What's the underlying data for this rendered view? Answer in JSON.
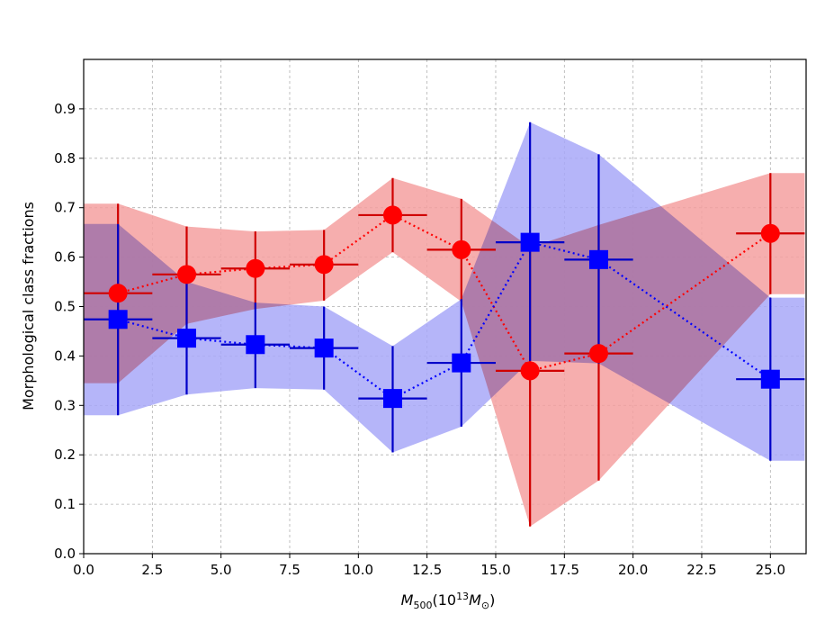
{
  "chart_data": {
    "type": "scatter",
    "title": "",
    "xlabel": "M",
    "xlabel_sub": "500",
    "xlabel_paren_open": "(10",
    "xlabel_sup": "13",
    "xlabel_m": "M",
    "xlabel_sun": "⊙",
    "xlabel_paren_close": ")",
    "ylabel": "Morphological class fractions",
    "xlim": [
      0.0,
      26.3
    ],
    "ylim": [
      0.0,
      1.0
    ],
    "xticks": [
      "0.0",
      "2.5",
      "5.0",
      "7.5",
      "10.0",
      "12.5",
      "15.0",
      "17.5",
      "20.0",
      "22.5",
      "25.0"
    ],
    "xtick_values": [
      0,
      2.5,
      5,
      7.5,
      10,
      12.5,
      15,
      17.5,
      20,
      22.5,
      25
    ],
    "yticks": [
      "0.0",
      "0.1",
      "0.2",
      "0.3",
      "0.4",
      "0.5",
      "0.6",
      "0.7",
      "0.8",
      "0.9"
    ],
    "ytick_values": [
      0,
      0.1,
      0.2,
      0.3,
      0.4,
      0.5,
      0.6,
      0.7,
      0.8,
      0.9
    ],
    "grid": true,
    "series": [
      {
        "name": "red-circles",
        "color": "#ff0000",
        "errcolor": "#d00000",
        "band_color": "#f4a0a0",
        "marker": "circle",
        "x": [
          1.25,
          3.75,
          6.25,
          8.75,
          11.25,
          13.75,
          16.25,
          18.75,
          25.0
        ],
        "y": [
          0.527,
          0.565,
          0.577,
          0.585,
          0.685,
          0.615,
          0.37,
          0.405,
          0.648
        ],
        "xerr": [
          1.25,
          1.25,
          1.25,
          1.25,
          1.25,
          1.25,
          1.25,
          1.25,
          1.25
        ],
        "ylow": [
          0.345,
          0.465,
          0.495,
          0.512,
          0.61,
          0.51,
          0.055,
          0.148,
          0.525
        ],
        "yhigh": [
          0.708,
          0.662,
          0.652,
          0.655,
          0.76,
          0.718,
          0.62,
          0.665,
          0.77
        ]
      },
      {
        "name": "blue-squares",
        "color": "#0000ff",
        "errcolor": "#0000c8",
        "band_color": "#a8a8f8",
        "marker": "square",
        "x": [
          1.25,
          3.75,
          6.25,
          8.75,
          11.25,
          13.75,
          16.25,
          18.75,
          25.0
        ],
        "y": [
          0.474,
          0.436,
          0.423,
          0.416,
          0.314,
          0.386,
          0.63,
          0.595,
          0.353
        ],
        "xerr": [
          1.25,
          1.25,
          1.25,
          1.25,
          1.25,
          1.25,
          1.25,
          1.25,
          1.25
        ],
        "ylow": [
          0.28,
          0.322,
          0.335,
          0.332,
          0.205,
          0.257,
          0.39,
          0.385,
          0.188
        ],
        "yhigh": [
          0.667,
          0.55,
          0.508,
          0.5,
          0.42,
          0.515,
          0.873,
          0.808,
          0.518
        ]
      }
    ]
  }
}
